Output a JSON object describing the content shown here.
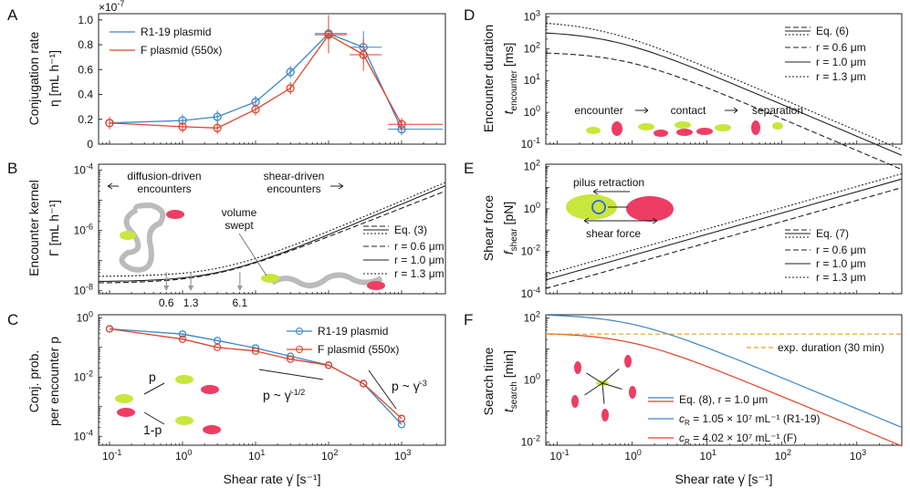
{
  "chart_data": [
    {
      "panel": "A",
      "type": "line",
      "xscale": "log",
      "xlim": [
        0.07,
        4000
      ],
      "ylim": [
        0,
        1.05
      ],
      "yexponent_label": "×10",
      "yexponent_power": "-7",
      "ylabel_line1": "Conjugation rate",
      "ylabel_line2": "η [mL h⁻¹]",
      "yticks": [
        "0",
        "0.2",
        "0.4",
        "0.6",
        "0.8",
        "1.0"
      ],
      "series": [
        {
          "name": "R1-19 plasmid",
          "color": "#3d85c6",
          "x": [
            0.1,
            1,
            3,
            10,
            30,
            100,
            300,
            1000
          ],
          "y": [
            0.17,
            0.19,
            0.22,
            0.34,
            0.58,
            0.89,
            0.78,
            0.12
          ]
        },
        {
          "name": "F plasmid (550x)",
          "color": "#e0452b",
          "x": [
            0.1,
            1,
            3,
            10,
            30,
            100,
            300,
            1000
          ],
          "y": [
            0.17,
            0.14,
            0.13,
            0.28,
            0.45,
            0.88,
            0.72,
            0.16
          ]
        }
      ]
    },
    {
      "panel": "B",
      "type": "line",
      "xscale": "log",
      "yscale": "log",
      "ylim_exp": [
        -8.1,
        -3.8
      ],
      "ylabel_line1": "Encounter kernel",
      "ylabel_line2": "Γ [mL h⁻¹]",
      "yticks": [
        "10",
        "10",
        "10"
      ],
      "ytick_exps": [
        "-8",
        "-6",
        "-4"
      ],
      "legend": [
        "Eq. (3)",
        "r = 0.6 μm",
        "r = 1.0 μm",
        "r = 1.3 μm"
      ],
      "radii": [
        0.6,
        1.0,
        1.3
      ],
      "marker_labels": [
        "0.6",
        "1.3",
        "6.1"
      ],
      "annotations": {
        "diffusion": "diffusion-driven",
        "diffusion2": "encounters",
        "shear": "shear-driven",
        "shear2": "encounters",
        "volume": "volume",
        "swept": "swept"
      }
    },
    {
      "panel": "C",
      "type": "line",
      "xscale": "log",
      "yscale": "log",
      "ylabel_line1": "Conj. prob.",
      "ylabel_line2": "per encounter p",
      "xlabel": "Shear rate γ̇ [s⁻¹]",
      "xticks_exp": [
        "-1",
        "0",
        "1",
        "2",
        "3"
      ],
      "series": [
        {
          "name": "R1-19 plasmid",
          "color": "#3d85c6",
          "x": [
            0.1,
            1,
            3,
            10,
            30,
            100,
            300,
            1000
          ],
          "y": [
            0.42,
            0.28,
            0.17,
            0.095,
            0.05,
            0.025,
            0.006,
            0.00025
          ]
        },
        {
          "name": "F plasmid (550x)",
          "color": "#e0452b",
          "x": [
            0.1,
            1,
            3,
            10,
            30,
            100,
            300,
            1000
          ],
          "y": [
            0.42,
            0.19,
            0.1,
            0.075,
            0.04,
            0.025,
            0.006,
            0.0004
          ]
        }
      ],
      "annotations": {
        "p_half": "p ~ γ̇",
        "p_half_exp": "-1/2",
        "p_three": "p ~ γ̇",
        "p_three_exp": "-3",
        "p": "p",
        "one_minus_p": "1-p"
      }
    },
    {
      "panel": "D",
      "type": "line",
      "xscale": "log",
      "yscale": "log",
      "ylabel_line1": "Encounter duration",
      "ylabel_line2": "t",
      "ylabel_sub": "encounter",
      "ylabel_unit": "[ms]",
      "legend": [
        "Eq. (6)",
        "r = 0.6 μm",
        "r = 1.0 μm",
        "r = 1.3 μm"
      ],
      "radii": [
        0.6,
        1.0,
        1.3
      ],
      "sequence": [
        "encounter",
        "contact",
        "separation"
      ]
    },
    {
      "panel": "E",
      "type": "line",
      "xscale": "log",
      "yscale": "log",
      "ylabel_line1": "Shear force",
      "ylabel_line2": "f",
      "ylabel_sub": "shear",
      "ylabel_unit": "[pN]",
      "legend": [
        "Eq. (7)",
        "r = 0.6 μm",
        "r = 1.0 μm",
        "r = 1.3 μm"
      ],
      "radii": [
        0.6,
        1.0,
        1.3
      ],
      "annotations": {
        "pilus": "pilus retraction",
        "shear": "shear force"
      }
    },
    {
      "panel": "F",
      "type": "line",
      "xscale": "log",
      "yscale": "log",
      "ylabel_line1": "Search time",
      "ylabel_line2": "t",
      "ylabel_sub": "search",
      "ylabel_unit": "[min]",
      "xlabel": "Shear rate γ̇ [s⁻¹]",
      "xticks_exp": [
        "-1",
        "0",
        "1",
        "2",
        "3"
      ],
      "exp_duration_label": "exp. duration (30 min)",
      "exp_duration_value": 30,
      "legend": [
        {
          "label": "Eq. (8), r = 1.0 μm",
          "color": "#888888"
        },
        {
          "label": "c  = 1.05 × 10⁷ mL⁻¹ (R1-19)",
          "sub": "R",
          "color": "#3d85c6"
        },
        {
          "label": "c  = 4.02 × 10⁷ mL⁻¹ (F)",
          "sub": "R",
          "color": "#e0452b"
        }
      ]
    }
  ],
  "panel_letters": [
    "A",
    "B",
    "C",
    "D",
    "E",
    "F"
  ]
}
